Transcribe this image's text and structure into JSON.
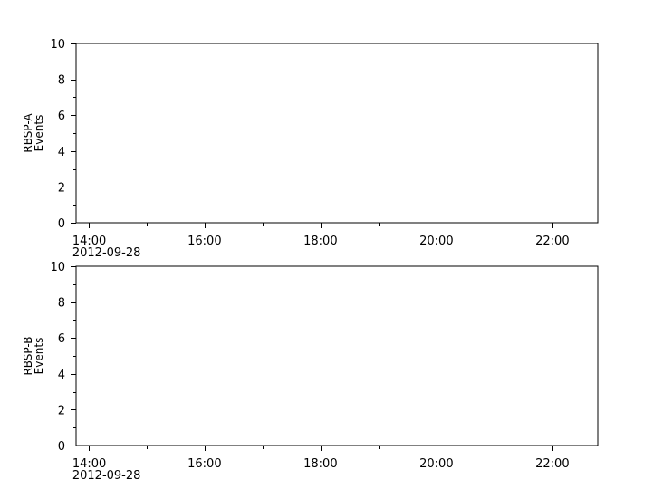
{
  "chart_data": [
    {
      "type": "line",
      "ylabel": [
        "RBSP-A",
        "Events"
      ],
      "ylim": [
        0,
        10
      ],
      "yticks": [
        0,
        2,
        4,
        6,
        8,
        10
      ],
      "xlim": [
        "2012-09-28 13:47",
        "2012-09-28 22:47"
      ],
      "xticks": [
        "14:00",
        "16:00",
        "18:00",
        "20:00",
        "22:00"
      ],
      "xdate_label": "2012-09-28",
      "series": [],
      "grid": false
    },
    {
      "type": "line",
      "ylabel": [
        "RBSP-B",
        "Events"
      ],
      "ylim": [
        0,
        10
      ],
      "yticks": [
        0,
        2,
        4,
        6,
        8,
        10
      ],
      "xlim": [
        "2012-09-28 13:47",
        "2012-09-28 22:47"
      ],
      "xticks": [
        "14:00",
        "16:00",
        "18:00",
        "20:00",
        "22:00"
      ],
      "xdate_label": "2012-09-28",
      "series": [],
      "grid": false
    }
  ]
}
